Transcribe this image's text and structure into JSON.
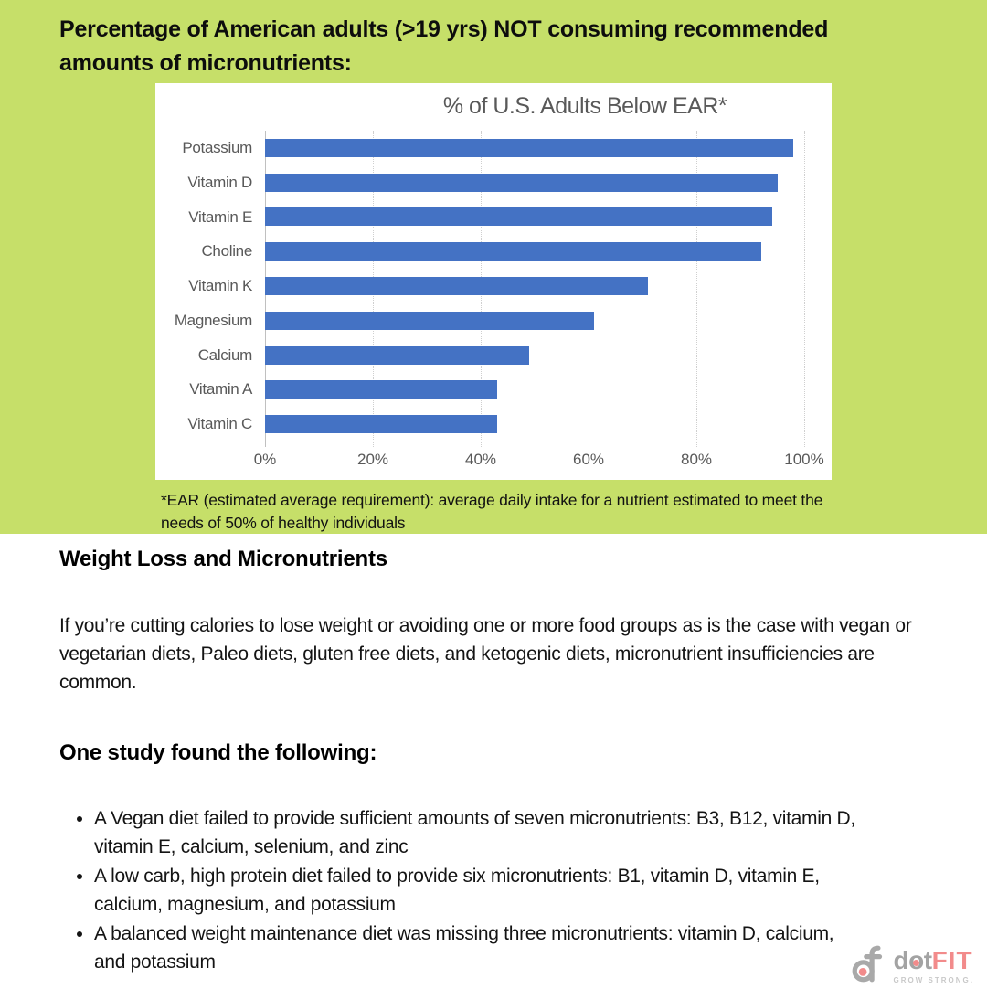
{
  "header": {
    "title_line1": "Percentage of American adults (>19 yrs) NOT consuming recommended",
    "title_line2": "amounts of micronutrients:"
  },
  "chart_data": {
    "type": "bar",
    "orientation": "horizontal",
    "title": "% of U.S. Adults Below EAR*",
    "categories": [
      "Potassium",
      "Vitamin D",
      "Vitamin E",
      "Choline",
      "Vitamin K",
      "Magnesium",
      "Calcium",
      "Vitamin A",
      "Vitamin C"
    ],
    "values": [
      98,
      95,
      94,
      92,
      71,
      61,
      49,
      43,
      43
    ],
    "x_tick_labels": [
      "0%",
      "20%",
      "40%",
      "60%",
      "80%",
      "100%"
    ],
    "xlim": [
      0,
      100
    ],
    "grid": true,
    "legend": false,
    "bar_color": "#4472c4",
    "footnote": "*EAR (estimated average requirement): average daily intake for a nutrient estimated to meet the needs of 50% of healthy individuals"
  },
  "article": {
    "heading1": "Weight Loss and Micronutrients",
    "paragraph1": "If you’re cutting calories to lose weight or avoiding one or more food groups as is the case with vegan or vegetarian diets, Paleo diets, gluten free diets, and ketogenic diets, micronutrient insufficiencies are common.",
    "heading2": "One study found the following:",
    "bullets": [
      "A Vegan diet failed to provide sufficient amounts of seven micronutrients: B3, B12, vitamin D, vitamin E, calcium, selenium, and zinc",
      "A low carb, high protein diet failed to provide six micronutrients: B1, vitamin D, vitamin E, calcium, magnesium, and potassium",
      "A balanced weight maintenance diet was missing three micronutrients: vitamin D, calcium, and potassium"
    ]
  },
  "logo": {
    "word_dot": "dot",
    "word_fit": "FIT",
    "tagline": "GROW STRONG."
  },
  "colors": {
    "banner_green": "#c6df69",
    "bar_blue": "#4472c4",
    "chart_text_gray": "#595959",
    "logo_gray": "#a9a9a9",
    "logo_pink": "#f28b8b"
  }
}
